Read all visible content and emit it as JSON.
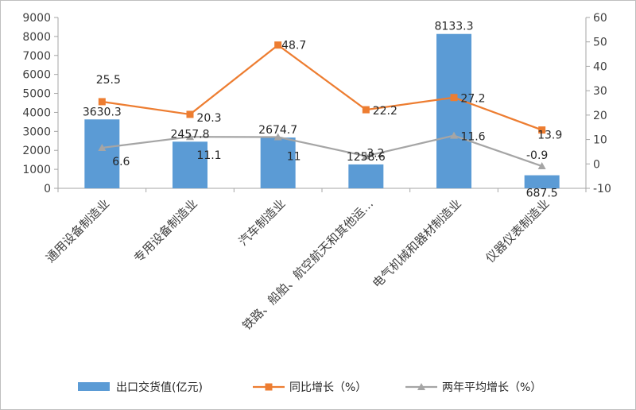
{
  "chart_data": {
    "type": "bar",
    "categories": [
      "通用设备制造业",
      "专用设备制造业",
      "汽车制造业",
      "铁路、船舶、航空航天和其他运…",
      "电气机械和器材制造业",
      "仪器仪表制造业"
    ],
    "series": [
      {
        "name": "出口交货值(亿元)",
        "type": "bar",
        "axis": "left",
        "color": "#5b9bd5",
        "values": [
          3630.3,
          2457.8,
          2674.7,
          1258.6,
          8133.3,
          687.5
        ],
        "labels": [
          "3630.3",
          "2457.8",
          "2674.7",
          "1258.6",
          "8133.3",
          "687.5"
        ]
      },
      {
        "name": "同比增长（%）",
        "type": "line",
        "axis": "right",
        "color": "#ed7d31",
        "marker": "square",
        "values": [
          25.5,
          20.3,
          48.7,
          22.2,
          27.2,
          13.9
        ],
        "labels": [
          "25.5",
          "20.3",
          "48.7",
          "22.2",
          "27.2",
          "13.9"
        ]
      },
      {
        "name": "两年平均增长（%）",
        "type": "line",
        "axis": "right",
        "color": "#a5a5a5",
        "marker": "triangle",
        "values": [
          6.6,
          11.1,
          11,
          3.2,
          11.6,
          -0.9
        ],
        "labels": [
          "6.6",
          "11.1",
          "11",
          "3.2",
          "11.6",
          "-0.9"
        ]
      }
    ],
    "y_left": {
      "min": 0,
      "max": 9000,
      "step": 1000,
      "ticks": [
        "0",
        "1000",
        "2000",
        "3000",
        "4000",
        "5000",
        "6000",
        "7000",
        "8000",
        "9000"
      ]
    },
    "y_right": {
      "min": -10,
      "max": 60,
      "step": 10,
      "ticks": [
        "-10",
        "0",
        "10",
        "20",
        "30",
        "40",
        "50",
        "60"
      ]
    },
    "grid": false,
    "legend_position": "bottom"
  }
}
